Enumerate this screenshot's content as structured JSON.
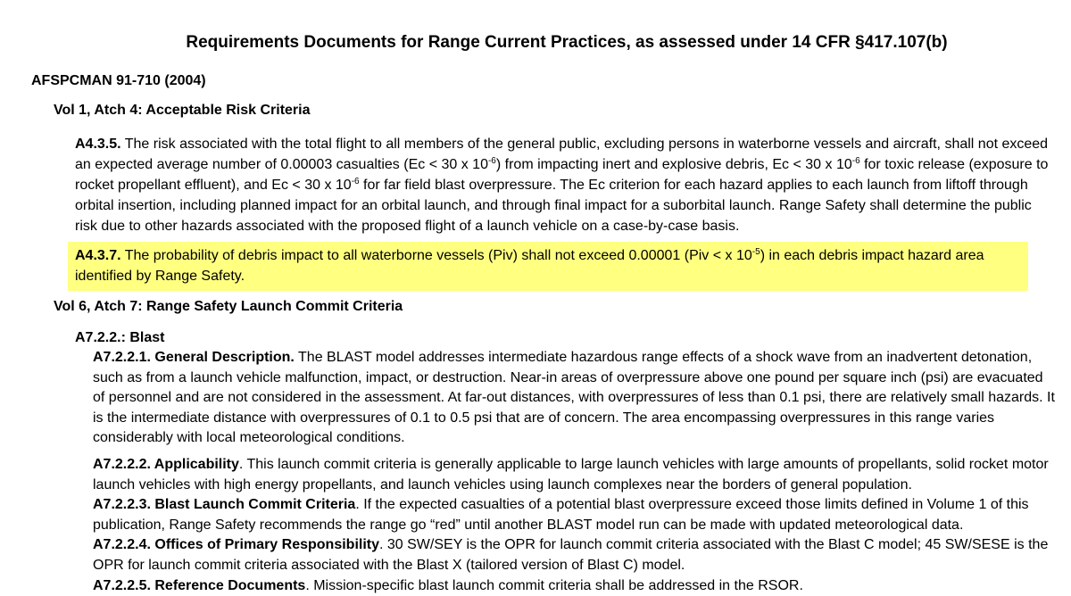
{
  "title": "Requirements Documents for Range Current Practices, as assessed under 14 CFR §417.107(b)",
  "doc_heading": "AFSPCMAN 91-710 (2004)",
  "vol1": {
    "heading": "Vol 1, Atch 4: Acceptable Risk Criteria",
    "paragraphs": [
      [
        {
          "b": "A4.3.5."
        },
        {
          "t": " The risk associated with the total flight to all members of the general public, excluding persons in waterborne vessels and aircraft, shall not exceed an expected average number of 0.00003 casualties (Ec < 30 x 10"
        },
        {
          "s": "-6"
        },
        {
          "t": ") from impacting inert and explosive debris, Ec < 30 x 10"
        },
        {
          "s": "-6"
        },
        {
          "t": " for toxic release (exposure to rocket propellant effluent), and Ec < 30 x 10"
        },
        {
          "s": "-6"
        },
        {
          "t": " for far field blast overpressure. The Ec criterion for each hazard applies to each launch from liftoff through orbital insertion, including planned impact for an orbital launch, and through final impact for a suborbital launch. Range Safety shall determine the public risk due to other hazards associated with the proposed flight of a launch vehicle on a case-by-case basis."
        }
      ],
      [
        {
          "b": "A4.3.7."
        },
        {
          "t": " The probability of debris impact to all waterborne vessels (Piv) shall not exceed 0.00001 (Piv < x 10"
        },
        {
          "s": "-5"
        },
        {
          "t": ") in each debris impact hazard area identified by Range Safety."
        }
      ]
    ],
    "highlight_color": "#ffff80"
  },
  "vol6": {
    "heading": "Vol 6, Atch 7: Range Safety Launch Commit Criteria",
    "subheading": "A7.2.2.: Blast",
    "paragraphs": [
      [
        {
          "b": "A7.2.2.1. General Description."
        },
        {
          "t": " The BLAST model addresses intermediate hazardous range effects of a shock wave from an inadvertent detonation, such as from a launch vehicle malfunction, impact, or destruction. Near-in areas of overpressure above one pound per square inch (psi) are evacuated of personnel and are not considered in the assessment. At far-out distances, with overpressures of less than 0.1 psi, there are relatively small hazards. It is the intermediate distance with overpressures of 0.1 to 0.5 psi that are of concern. The area encompassing overpressures in this range varies considerably with local meteorological conditions."
        }
      ],
      [
        {
          "b": "A7.2.2.2. Applicability"
        },
        {
          "t": ". This launch commit criteria is generally applicable to large launch vehicles with large amounts of propellants, solid rocket motor launch vehicles with high energy propellants, and launch vehicles using launch complexes near the borders of general population."
        }
      ],
      [
        {
          "b": "A7.2.2.3. Blast Launch Commit Criteria"
        },
        {
          "t": ". If the expected casualties of a potential blast overpressure exceed those limits defined in Volume 1 of this publication, Range Safety recommends the range go “red” until another BLAST model run can be made with updated meteorological data."
        }
      ],
      [
        {
          "b": "A7.2.2.4. Offices of Primary Responsibility"
        },
        {
          "t": ". 30 SW/SEY is the OPR for launch commit criteria associated with the Blast C model; 45 SW/SESE is the OPR for launch commit criteria associated with the Blast X (tailored version of Blast C) model."
        }
      ],
      [
        {
          "b": "A7.2.2.5. Reference Documents"
        },
        {
          "t": ". Mission-specific blast launch commit criteria shall be addressed in the RSOR."
        }
      ]
    ]
  }
}
